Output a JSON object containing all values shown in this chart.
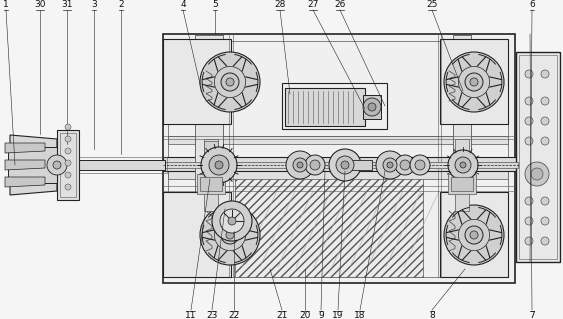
{
  "bg_color": "#f5f5f5",
  "lc": "#555555",
  "dc": "#222222",
  "fig_width": 5.63,
  "fig_height": 3.19,
  "dpi": 100,
  "top_labels": [
    [
      "1",
      6
    ],
    [
      "30",
      40
    ],
    [
      "31",
      67
    ],
    [
      "3",
      94
    ],
    [
      "2",
      121
    ],
    [
      "4",
      183
    ],
    [
      "5",
      215
    ],
    [
      "28",
      280
    ],
    [
      "27",
      313
    ],
    [
      "26",
      340
    ],
    [
      "25",
      432
    ],
    [
      "6",
      532
    ]
  ],
  "bottom_labels": [
    [
      "11",
      191
    ],
    [
      "23",
      212
    ],
    [
      "22",
      234
    ],
    [
      "21",
      282
    ],
    [
      "20",
      305
    ],
    [
      "9",
      321
    ],
    [
      "19",
      338
    ],
    [
      "18",
      360
    ],
    [
      "8",
      432
    ],
    [
      "7",
      532
    ]
  ]
}
